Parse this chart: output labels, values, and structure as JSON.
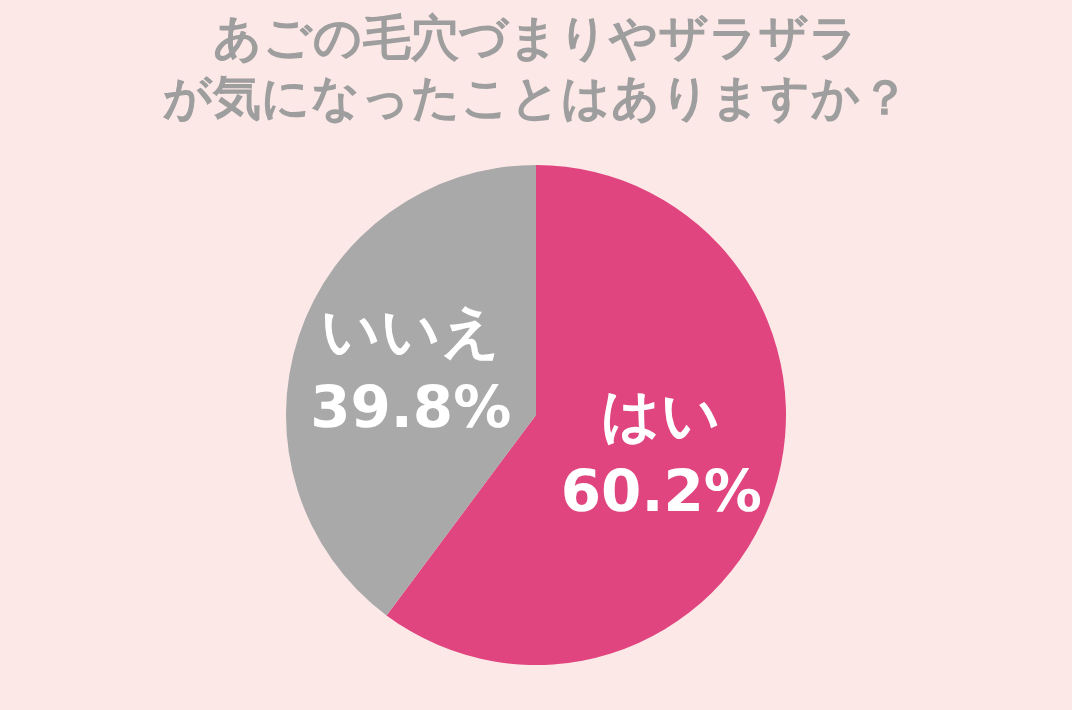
{
  "chart_data": {
    "type": "pie",
    "title": "あごの毛穴づまりやザラザラ",
    "subtitle": "が気になったことはありますか？",
    "categories": [
      "はい",
      "いいえ"
    ],
    "values": [
      60.2,
      39.8
    ],
    "colors": [
      "#e0457f",
      "#a9a9a9"
    ],
    "value_labels": [
      "60.2%",
      "39.8%"
    ],
    "legend": false
  }
}
